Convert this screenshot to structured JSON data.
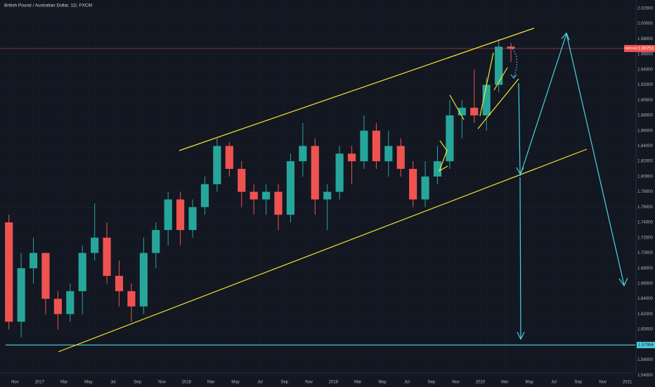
{
  "chart_data": {
    "type": "candlestick",
    "title": "British Pound / Australian Dollar, 1D, FXCM",
    "symbol": "GBPAUD",
    "last_price": 1.96753,
    "last_price_color": "#ef5350",
    "support_level": 1.57956,
    "support_color": "#4dd0e1",
    "up_color": "#26a69a",
    "down_color": "#ef5350",
    "grid": true,
    "x": [
      "2016-10",
      "2016-11",
      "2016-12",
      "2017-01",
      "2017-02",
      "2017-03",
      "2017-04",
      "2017-05",
      "2017-06",
      "2017-07",
      "2017-08",
      "2017-09",
      "2017-10",
      "2017-11",
      "2017-12",
      "2018-01",
      "2018-02",
      "2018-03",
      "2018-04",
      "2018-05",
      "2018-06",
      "2018-07",
      "2018-08",
      "2018-09",
      "2018-10",
      "2018-11",
      "2018-12",
      "2019-01",
      "2019-02",
      "2019-03",
      "2019-04",
      "2019-05",
      "2019-06",
      "2019-07",
      "2019-08",
      "2019-09",
      "2019-10",
      "2019-11",
      "2019-12",
      "2020-01",
      "2020-02",
      "2020-03"
    ],
    "open": [
      1.74,
      1.61,
      1.68,
      1.7,
      1.64,
      1.62,
      1.65,
      1.7,
      1.72,
      1.67,
      1.65,
      1.63,
      1.7,
      1.73,
      1.77,
      1.73,
      1.76,
      1.79,
      1.84,
      1.81,
      1.78,
      1.77,
      1.78,
      1.75,
      1.82,
      1.84,
      1.77,
      1.78,
      1.83,
      1.82,
      1.86,
      1.82,
      1.84,
      1.81,
      1.77,
      1.8,
      1.82,
      1.88,
      1.89,
      1.88,
      1.92,
      1.97
    ],
    "high": [
      1.75,
      1.7,
      1.72,
      1.7,
      1.65,
      1.66,
      1.71,
      1.765,
      1.74,
      1.69,
      1.66,
      1.72,
      1.74,
      1.78,
      1.78,
      1.77,
      1.8,
      1.85,
      1.845,
      1.82,
      1.79,
      1.79,
      1.79,
      1.83,
      1.87,
      1.85,
      1.79,
      1.84,
      1.84,
      1.88,
      1.87,
      1.86,
      1.85,
      1.82,
      1.82,
      1.84,
      1.9,
      1.9,
      1.94,
      1.93,
      1.98,
      1.975
    ],
    "low": [
      1.6,
      1.59,
      1.66,
      1.62,
      1.6,
      1.61,
      1.62,
      1.69,
      1.66,
      1.63,
      1.61,
      1.62,
      1.68,
      1.71,
      1.71,
      1.72,
      1.75,
      1.78,
      1.8,
      1.76,
      1.75,
      1.75,
      1.73,
      1.74,
      1.8,
      1.75,
      1.73,
      1.77,
      1.79,
      1.81,
      1.81,
      1.8,
      1.8,
      1.76,
      1.76,
      1.79,
      1.81,
      1.85,
      1.87,
      1.86,
      1.91,
      1.95
    ],
    "close": [
      1.61,
      1.68,
      1.7,
      1.64,
      1.62,
      1.65,
      1.7,
      1.72,
      1.67,
      1.65,
      1.63,
      1.7,
      1.73,
      1.77,
      1.73,
      1.76,
      1.79,
      1.84,
      1.81,
      1.78,
      1.77,
      1.78,
      1.75,
      1.82,
      1.84,
      1.77,
      1.78,
      1.83,
      1.82,
      1.86,
      1.82,
      1.84,
      1.81,
      1.77,
      1.8,
      1.82,
      1.88,
      1.89,
      1.88,
      1.92,
      1.97,
      1.967
    ],
    "xlim": [
      "2016-10",
      "2021-02"
    ],
    "xticks": [
      {
        "value": "2016-11",
        "label": "Nov"
      },
      {
        "value": "2017-01",
        "label": "2017"
      },
      {
        "value": "2017-03",
        "label": "Mar"
      },
      {
        "value": "2017-05",
        "label": "May"
      },
      {
        "value": "2017-07",
        "label": "Jul"
      },
      {
        "value": "2017-09",
        "label": "Sep"
      },
      {
        "value": "2017-11",
        "label": "Nov"
      },
      {
        "value": "2018-01",
        "label": "2018"
      },
      {
        "value": "2018-03",
        "label": "Mar"
      },
      {
        "value": "2018-05",
        "label": "May"
      },
      {
        "value": "2018-07",
        "label": "Jul"
      },
      {
        "value": "2018-09",
        "label": "Sep"
      },
      {
        "value": "2018-11",
        "label": "Nov"
      },
      {
        "value": "2019-01",
        "label": "2019"
      },
      {
        "value": "2019-03",
        "label": "Mar"
      },
      {
        "value": "2019-05",
        "label": "May"
      },
      {
        "value": "2019-07",
        "label": "Jul"
      },
      {
        "value": "2019-09",
        "label": "Sep"
      },
      {
        "value": "2019-11",
        "label": "Nov"
      },
      {
        "value": "2020-01",
        "label": "2020"
      },
      {
        "value": "2020-03",
        "label": "Mar"
      },
      {
        "value": "2020-05",
        "label": "May"
      },
      {
        "value": "2020-07",
        "label": "Jul"
      },
      {
        "value": "2020-09",
        "label": "Sep"
      },
      {
        "value": "2020-11",
        "label": "Nov"
      },
      {
        "value": "2021-01",
        "label": "2021"
      }
    ],
    "ylim": [
      1.543,
      2.031
    ],
    "yticks": [
      {
        "value": 1.54,
        "label": "1.54000"
      },
      {
        "value": 1.56,
        "label": "1.56000"
      },
      {
        "value": 1.58,
        "label": "1.58000"
      },
      {
        "value": 1.6,
        "label": "1.60000"
      },
      {
        "value": 1.62,
        "label": "1.62000"
      },
      {
        "value": 1.64,
        "label": "1.64000"
      },
      {
        "value": 1.66,
        "label": "1.66000"
      },
      {
        "value": 1.68,
        "label": "1.68000"
      },
      {
        "value": 1.7,
        "label": "1.70000"
      },
      {
        "value": 1.72,
        "label": "1.72000"
      },
      {
        "value": 1.74,
        "label": "1.74000"
      },
      {
        "value": 1.76,
        "label": "1.76000"
      },
      {
        "value": 1.78,
        "label": "1.78000"
      },
      {
        "value": 1.8,
        "label": "1.80000"
      },
      {
        "value": 1.82,
        "label": "1.82000"
      },
      {
        "value": 1.84,
        "label": "1.84000"
      },
      {
        "value": 1.86,
        "label": "1.86000"
      },
      {
        "value": 1.88,
        "label": "1.88000"
      },
      {
        "value": 1.9,
        "label": "1.90000"
      },
      {
        "value": 1.92,
        "label": "1.92000"
      },
      {
        "value": 1.94,
        "label": "1.94000"
      },
      {
        "value": 1.96,
        "label": "1.96000"
      },
      {
        "value": 1.98,
        "label": "1.98000"
      },
      {
        "value": 2.0,
        "label": "2.00000"
      },
      {
        "value": 2.02,
        "label": "2.02000"
      }
    ]
  }
}
